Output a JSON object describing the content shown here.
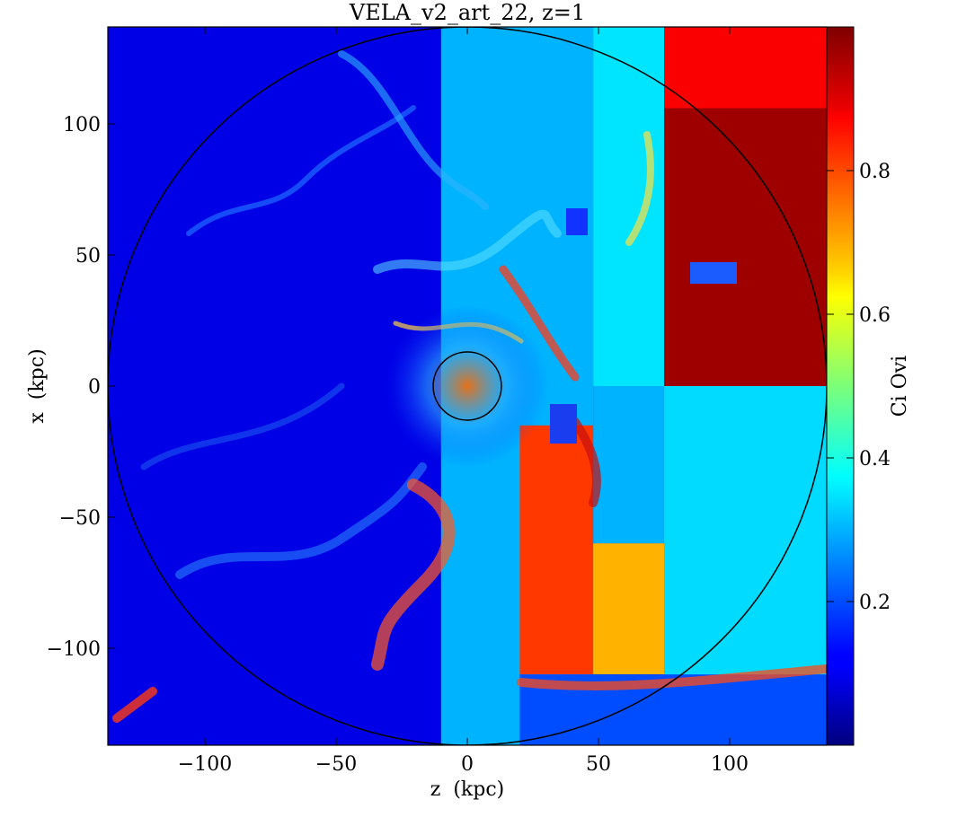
{
  "chart_data": {
    "type": "heatmap",
    "title": "VELA_v2_art_22, z=1",
    "xlabel": "z  (kpc)",
    "ylabel": "x  (kpc)",
    "xlim": [
      -137,
      137
    ],
    "ylim": [
      -137,
      137
    ],
    "x_ticks": [
      -100,
      -50,
      0,
      50,
      100
    ],
    "y_ticks": [
      -100,
      -50,
      0,
      50,
      100
    ],
    "x_tick_labels": [
      "−100",
      "−50",
      "0",
      "50",
      "100"
    ],
    "y_tick_labels": [
      "−100",
      "−50",
      "0",
      "50",
      "100"
    ],
    "colorbar": {
      "label": "Ci Ovi",
      "colormap": "jet",
      "range": [
        0.0,
        1.0
      ],
      "ticks": [
        0.2,
        0.4,
        0.6,
        0.8
      ],
      "tick_labels": [
        "0.2",
        "0.4",
        "0.6",
        "0.8"
      ]
    },
    "circles": [
      {
        "center": [
          0,
          0
        ],
        "radius": 137
      },
      {
        "center": [
          0,
          0
        ],
        "radius": 13
      }
    ],
    "regions": [
      {
        "x": [
          -137,
          -10
        ],
        "y": [
          -137,
          137
        ],
        "value": 0.1
      },
      {
        "x": [
          -10,
          48
        ],
        "y": [
          -137,
          137
        ],
        "value": 0.3
      },
      {
        "x": [
          75,
          137
        ],
        "y": [
          0,
          137
        ],
        "value": 0.97
      },
      {
        "x": [
          75,
          137
        ],
        "y": [
          106,
          137
        ],
        "value": 0.88
      },
      {
        "x": [
          48,
          75
        ],
        "y": [
          0,
          137
        ],
        "value": 0.35
      },
      {
        "x": [
          75,
          137
        ],
        "y": [
          -137,
          0
        ],
        "value": 0.34
      },
      {
        "x": [
          48,
          75
        ],
        "y": [
          -60,
          0
        ],
        "value": 0.3
      },
      {
        "x": [
          20,
          48
        ],
        "y": [
          -110,
          -15
        ],
        "value": 0.82
      },
      {
        "x": [
          48,
          75
        ],
        "y": [
          -110,
          -60
        ],
        "value": 0.7
      },
      {
        "x": [
          20,
          137
        ],
        "y": [
          -137,
          -110
        ],
        "value": 0.2
      }
    ]
  }
}
